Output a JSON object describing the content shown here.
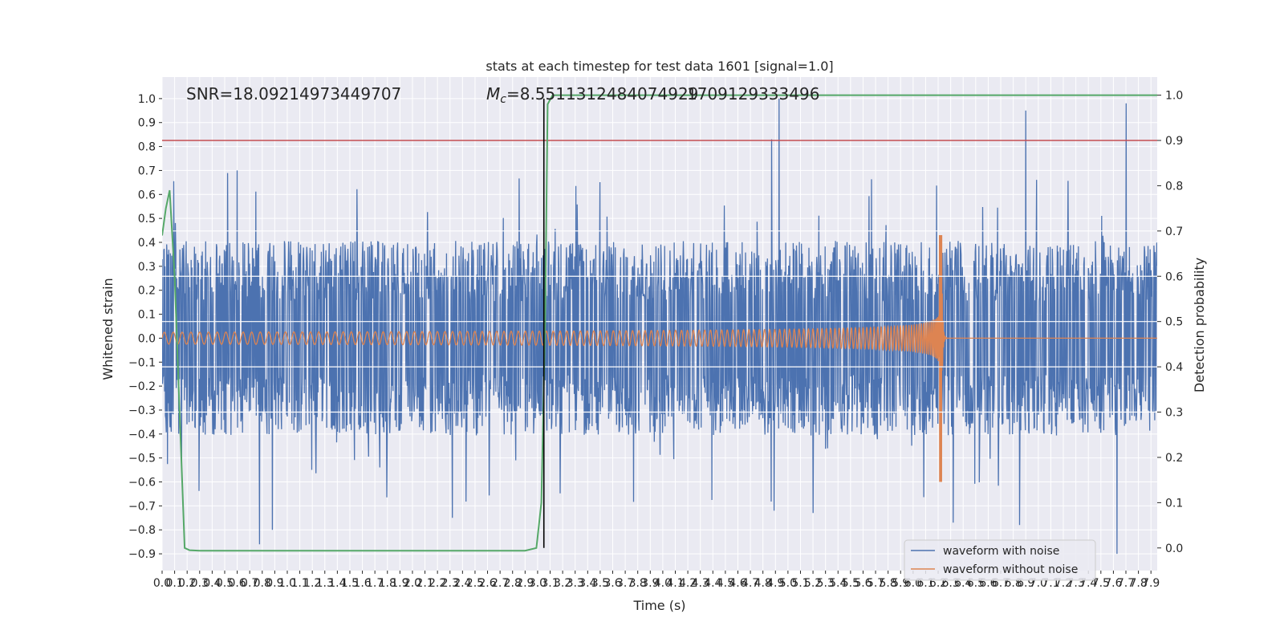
{
  "chart_data": {
    "type": "line",
    "title": "stats at each timestep for test data 1601 [signal=1.0]",
    "xlabel": "Time (s)",
    "ylabel_left": "Whitened strain",
    "ylabel_right": "Detection probability",
    "xlim": [
      0,
      7.95
    ],
    "ylim_left": [
      -0.97,
      1.09
    ],
    "ylim_right": [
      -0.05,
      1.04
    ],
    "x_ticks": [
      "0.0",
      "0.1",
      "0.2",
      "0.3",
      "0.4",
      "0.5",
      "0.6",
      "0.7",
      "0.8",
      "0.9",
      "1.0",
      "1.1",
      "1.2",
      "1.3",
      "1.4",
      "1.5",
      "1.6",
      "1.7",
      "1.8",
      "1.9",
      "2.0",
      "2.1",
      "2.2",
      "2.3",
      "2.4",
      "2.5",
      "2.6",
      "2.7",
      "2.8",
      "2.9",
      "3.0",
      "3.1",
      "3.2",
      "3.3",
      "3.4",
      "3.5",
      "3.6",
      "3.7",
      "3.8",
      "3.9",
      "4.0",
      "4.1",
      "4.2",
      "4.3",
      "4.4",
      "4.5",
      "4.6",
      "4.7",
      "4.8",
      "4.9",
      "5.0",
      "5.1",
      "5.2",
      "5.3",
      "5.4",
      "5.5",
      "5.6",
      "5.7",
      "5.8",
      "5.9",
      "6.0",
      "6.1",
      "6.2",
      "6.3",
      "6.4",
      "6.5",
      "6.6",
      "6.7",
      "6.8",
      "6.9",
      "7.0",
      "7.1",
      "7.2",
      "7.3",
      "7.4",
      "7.5",
      "7.6",
      "7.7",
      "7.8",
      "7.9"
    ],
    "y_ticks_left": [
      "-0.9",
      "-0.8",
      "-0.7",
      "-0.6",
      "-0.5",
      "-0.4",
      "-0.3",
      "-0.2",
      "-0.1",
      "0.0",
      "0.1",
      "0.2",
      "0.3",
      "0.4",
      "0.5",
      "0.6",
      "0.7",
      "0.8",
      "0.9",
      "1.0"
    ],
    "y_ticks_right": [
      "0.0",
      "0.1",
      "0.2",
      "0.3",
      "0.4",
      "0.5",
      "0.6",
      "0.7",
      "0.8",
      "0.9",
      "1.0"
    ],
    "annotations": {
      "snr": "SNR=18.09214973449707",
      "mc_symbol": "M",
      "mc_sub": "c",
      "mc_value": "=8.5511312484074929",
      "mc_overlap": "1709129333496"
    },
    "threshold_y_right": 0.9,
    "detection_time_x": 3.05,
    "series": [
      {
        "name": "waveform with noise",
        "color": "#4c72b0",
        "kind": "noise",
        "typical_amplitude": 0.28,
        "peak_points": [
          [
            0.6,
            0.7
          ],
          [
            0.78,
            -0.86
          ],
          [
            0.88,
            -0.8
          ],
          [
            2.32,
            -0.75
          ],
          [
            4.87,
            0.83
          ],
          [
            4.93,
            1.0
          ],
          [
            4.89,
            -0.72
          ],
          [
            5.2,
            -0.73
          ],
          [
            6.32,
            -0.77
          ],
          [
            6.85,
            -0.78
          ],
          [
            6.9,
            0.95
          ],
          [
            7.7,
            0.98
          ],
          [
            7.63,
            -0.9
          ]
        ]
      },
      {
        "name": "waveform without noise",
        "color": "#dd8452",
        "kind": "chirp",
        "merger_time": 6.23,
        "peak_amplitude": 0.43,
        "min_amplitude": -0.6,
        "start_amplitude": 0.025
      },
      {
        "name": "detection probability",
        "color": "#55a868",
        "axis": "right",
        "x": [
          0.0,
          0.03,
          0.06,
          0.1,
          0.14,
          0.18,
          0.22,
          0.3,
          0.5,
          1.0,
          1.5,
          2.0,
          2.5,
          2.9,
          2.99,
          3.03,
          3.06,
          3.08,
          3.12,
          3.5,
          4.0,
          5.0,
          6.0,
          7.0,
          7.95
        ],
        "y": [
          0.69,
          0.75,
          0.79,
          0.6,
          0.3,
          0.0,
          -0.005,
          -0.006,
          -0.006,
          -0.006,
          -0.006,
          -0.006,
          -0.006,
          -0.006,
          -0.0,
          0.1,
          0.5,
          0.98,
          1.0,
          1.0,
          1.0,
          1.0,
          1.0,
          1.0,
          1.0
        ]
      },
      {
        "name": "threshold",
        "color": "#c44e52",
        "axis": "right",
        "value": 0.9
      }
    ],
    "legend": {
      "placement": "bottom-right",
      "entries": [
        "waveform with noise",
        "waveform without noise"
      ]
    },
    "grid": true,
    "background": "#eaeaf2"
  }
}
